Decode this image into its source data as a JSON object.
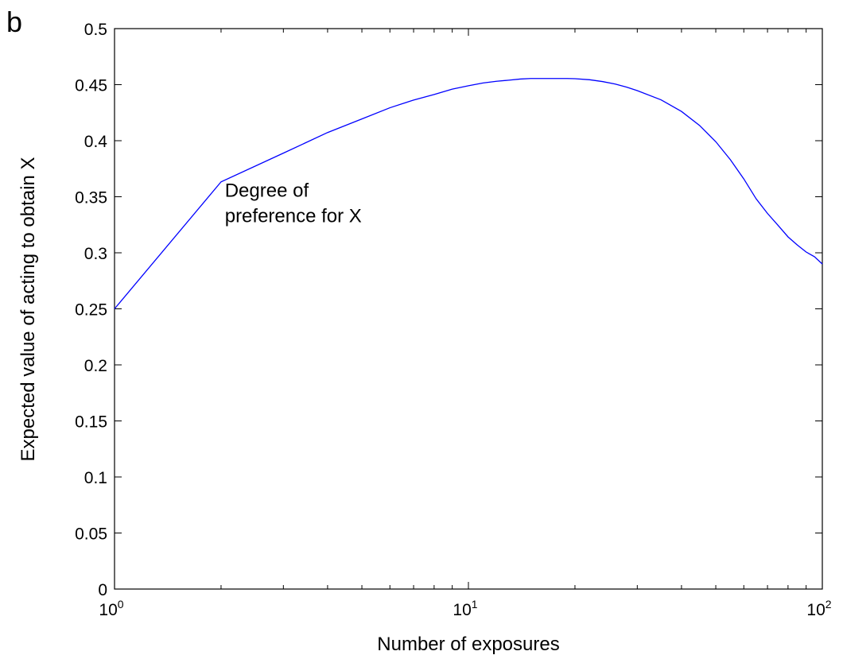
{
  "panel_label": "b",
  "chart_data": {
    "type": "line",
    "title": "",
    "xlabel": "Number of exposures",
    "ylabel": "Expected value of acting to obtain X",
    "x_scale": "log",
    "xlim": [
      1,
      100
    ],
    "ylim": [
      0,
      0.5
    ],
    "x_ticks": [
      {
        "value": 1,
        "base": "10",
        "exp": "0"
      },
      {
        "value": 10,
        "base": "10",
        "exp": "1"
      },
      {
        "value": 100,
        "base": "10",
        "exp": "2"
      }
    ],
    "y_ticks": [
      "0",
      "0.05",
      "0.1",
      "0.15",
      "0.2",
      "0.25",
      "0.3",
      "0.35",
      "0.4",
      "0.45",
      "0.5"
    ],
    "grid": false,
    "series": [
      {
        "color": "#0000ff",
        "x": [
          1,
          2,
          3,
          4,
          5,
          6,
          7,
          8,
          9,
          10,
          11,
          12,
          13,
          14,
          15,
          16,
          17,
          18,
          19,
          20,
          22,
          24,
          26,
          28,
          30,
          35,
          40,
          45,
          50,
          55,
          60,
          65,
          70,
          75,
          80,
          85,
          90,
          95,
          100
        ],
        "y": [
          0.25,
          0.3633,
          0.3889,
          0.4073,
          0.4194,
          0.4294,
          0.4363,
          0.4412,
          0.446,
          0.449,
          0.4515,
          0.453,
          0.454,
          0.455,
          0.4555,
          0.4555,
          0.4555,
          0.4555,
          0.4555,
          0.4553,
          0.4544,
          0.4527,
          0.4505,
          0.4478,
          0.4447,
          0.4365,
          0.4261,
          0.4136,
          0.3991,
          0.383,
          0.3659,
          0.3482,
          0.3351,
          0.3244,
          0.3142,
          0.3069,
          0.3007,
          0.2965,
          0.29
        ]
      }
    ],
    "annotations": [
      {
        "lines": [
          "Degree of",
          "preference for X"
        ],
        "x": 2.05,
        "y": 0.35
      }
    ]
  }
}
